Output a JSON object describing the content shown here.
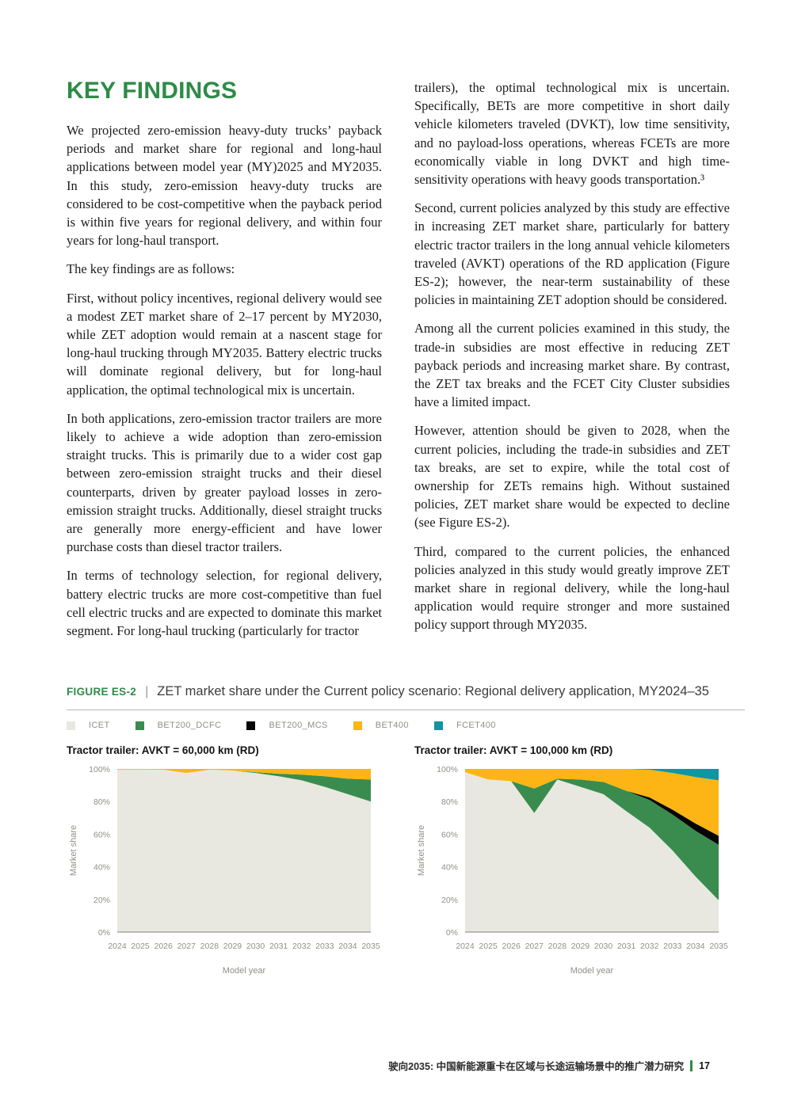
{
  "page": {
    "heading": "KEY FINDINGS",
    "left_column": {
      "paragraphs": [
        "We projected zero-emission heavy-duty trucks’ payback periods and market share for regional and long-haul applications between model year (MY)2025 and MY2035. In this study, zero-emission heavy-duty trucks are considered to be cost-competitive when the payback period is within five years for regional delivery, and within four years for long-haul transport.",
        "The key findings are as follows:",
        "First, without policy incentives, regional delivery would see a modest ZET market share of 2–17 percent by MY2030, while ZET adoption would remain at a nascent stage for long-haul trucking through MY2035. Battery electric trucks will dominate regional delivery, but for long-haul application, the optimal technological mix is uncertain.",
        "In both applications, zero-emission tractor trailers are more likely to achieve a wide adoption than zero-emission straight trucks. This is primarily due to a wider cost gap between zero-emission straight trucks and their diesel counterparts, driven by greater payload losses in zero-emission straight trucks. Additionally, diesel straight trucks are generally more energy-efficient and have lower purchase costs than diesel tractor trailers.",
        "In terms of technology selection, for regional delivery, battery electric trucks are more cost-competitive than fuel cell electric trucks and are expected to dominate this market segment. For long-haul trucking (particularly for tractor"
      ]
    },
    "right_column": {
      "paragraphs": [
        "trailers), the optimal technological mix is uncertain. Specifically, BETs are more competitive in short daily vehicle kilometers traveled (DVKT), low time sensitivity, and no payload-loss operations, whereas FCETs are more economically viable in long DVKT and high time-sensitivity operations with heavy goods transportation.³",
        "Second, current policies analyzed by this study are effective in increasing ZET market share, particularly for battery electric tractor trailers in the long annual vehicle kilometers traveled (AVKT) operations of the RD application (Figure ES-2); however, the near-term sustainability of these policies in maintaining ZET adoption should be considered.",
        "Among all the current policies examined in this study, the trade-in subsidies are most effective in reducing ZET payback periods and increasing market share. By contrast, the ZET tax breaks and the FCET City Cluster subsidies have a limited impact.",
        "However, attention should be given to 2028, when the current policies, including the trade-in subsidies and ZET tax breaks, are set to expire, while the total cost of ownership for ZETs remains high. Without sustained policies, ZET market share would be expected to decline (see Figure ES-2).",
        "Third, compared to the current policies, the enhanced policies analyzed in this study would greatly improve ZET market share in regional delivery, while the long-haul application would require stronger and more sustained policy support through MY2035."
      ]
    },
    "footer": {
      "text": "驶向2035: 中国新能源重卡在区域与长途运输场景中的推广潜力研究",
      "page_number": "17"
    }
  },
  "figure": {
    "label": "FIGURE ES-2",
    "separator": "|",
    "title": "ZET market share under the Current policy scenario: Regional delivery application, MY2024–35",
    "accent_color": "#2e8b47",
    "legend": [
      {
        "label": "ICET",
        "color": "#e8e8e0"
      },
      {
        "label": "BET200_DCFC",
        "color": "#3a8c4e"
      },
      {
        "label": "BET200_MCS",
        "color": "#060606"
      },
      {
        "label": "BET400",
        "color": "#fcb515"
      },
      {
        "label": "FCET400",
        "color": "#1095a3"
      }
    ]
  },
  "chart_data": [
    {
      "type": "area",
      "stacked": true,
      "title": "Tractor trailer: AVKT = 60,000 km (RD)",
      "x": [
        "2024",
        "2025",
        "2026",
        "2027",
        "2028",
        "2029",
        "2030",
        "2031",
        "2032",
        "2033",
        "2034",
        "2035"
      ],
      "xlabel": "Model year",
      "ylabel": "Market share",
      "ylim": [
        0,
        100
      ],
      "yticks": [
        "0%",
        "20%",
        "40%",
        "60%",
        "80%",
        "100%"
      ],
      "grid": false,
      "legend_position": "top",
      "series": [
        {
          "name": "ICET",
          "color": "#e8e8e0",
          "values": [
            99.6,
            99.6,
            99.5,
            97.5,
            99.5,
            99,
            97.5,
            95.5,
            93,
            89,
            84.5,
            80
          ]
        },
        {
          "name": "BET200_DCFC",
          "color": "#3a8c4e",
          "values": [
            0,
            0,
            0,
            0,
            0,
            0,
            0.5,
            1.5,
            3.5,
            6.5,
            9.5,
            13.5
          ]
        },
        {
          "name": "BET200_MCS",
          "color": "#060606",
          "values": [
            0,
            0,
            0,
            0,
            0,
            0,
            0,
            0,
            0,
            0,
            0,
            0
          ]
        },
        {
          "name": "BET400",
          "color": "#fcb515",
          "values": [
            0.4,
            0.4,
            0.5,
            2.5,
            0.5,
            1,
            2,
            3,
            3.5,
            4.5,
            6,
            6.5
          ]
        },
        {
          "name": "FCET400",
          "color": "#1095a3",
          "values": [
            0,
            0,
            0,
            0,
            0,
            0,
            0,
            0,
            0,
            0,
            0,
            0
          ]
        }
      ]
    },
    {
      "type": "area",
      "stacked": true,
      "title": "Tractor trailer: AVKT = 100,000 km (RD)",
      "x": [
        "2024",
        "2025",
        "2026",
        "2027",
        "2028",
        "2029",
        "2030",
        "2031",
        "2032",
        "2033",
        "2034",
        "2035"
      ],
      "xlabel": "Model year",
      "ylabel": "Market share",
      "ylim": [
        0,
        100
      ],
      "yticks": [
        "0%",
        "20%",
        "40%",
        "60%",
        "80%",
        "100%"
      ],
      "grid": false,
      "legend_position": "top",
      "series": [
        {
          "name": "ICET",
          "color": "#e8e8e0",
          "values": [
            98,
            93.5,
            92.5,
            73,
            93.5,
            89,
            84.5,
            74,
            64,
            50,
            34,
            19.5
          ]
        },
        {
          "name": "BET200_DCFC",
          "color": "#3a8c4e",
          "values": [
            0,
            0,
            0,
            15,
            0.5,
            4.5,
            7.5,
            12.5,
            17,
            22,
            28,
            34
          ]
        },
        {
          "name": "BET200_MCS",
          "color": "#060606",
          "values": [
            0,
            0,
            0,
            0,
            0,
            0,
            0,
            0,
            1.5,
            3,
            4.5,
            5.5
          ]
        },
        {
          "name": "BET400",
          "color": "#fcb515",
          "values": [
            2,
            6.5,
            7.5,
            12,
            6,
            6.5,
            8,
            13.5,
            17,
            22.5,
            28.5,
            34
          ]
        },
        {
          "name": "FCET400",
          "color": "#1095a3",
          "values": [
            0,
            0,
            0,
            0,
            0,
            0,
            0,
            0,
            0.5,
            2.5,
            5,
            7
          ]
        }
      ]
    }
  ]
}
